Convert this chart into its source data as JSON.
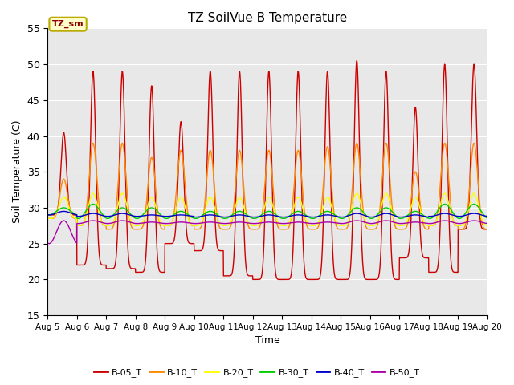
{
  "title": "TZ SoilVue B Temperature",
  "xlabel": "Time",
  "ylabel": "Soil Temperature (C)",
  "ylim": [
    15,
    55
  ],
  "x_tick_labels": [
    "Aug 5",
    "Aug 6",
    "Aug 7",
    "Aug 8",
    "Aug 9",
    "Aug 10",
    "Aug 11",
    "Aug 12",
    "Aug 13",
    "Aug 14",
    "Aug 15",
    "Aug 16",
    "Aug 17",
    "Aug 18",
    "Aug 19",
    "Aug 20"
  ],
  "legend_label": "TZ_sm",
  "yticks": [
    15,
    20,
    25,
    30,
    35,
    40,
    45,
    50,
    55
  ],
  "background_color": "#e8e8e8",
  "figure_color": "#ffffff",
  "series": [
    {
      "name": "B-05_T",
      "color": "#cc0000",
      "night_mins": [
        29.0,
        22.0,
        21.5,
        21.0,
        25.0,
        24.0,
        20.5,
        20.0,
        20.0,
        20.0,
        20.0,
        20.0,
        23.0,
        21.0,
        27.0
      ],
      "day_maxs": [
        40.5,
        49.0,
        49.0,
        47.0,
        42.0,
        49.0,
        49.0,
        49.0,
        49.0,
        49.0,
        50.5,
        49.0,
        44.0,
        50.0,
        50.0
      ],
      "sharpness": 6
    },
    {
      "name": "B-10_T",
      "color": "#ff8800",
      "night_mins": [
        28.5,
        27.5,
        27.0,
        27.0,
        27.5,
        27.0,
        27.0,
        27.0,
        27.0,
        27.0,
        27.0,
        27.0,
        27.0,
        27.5,
        27.0
      ],
      "day_maxs": [
        34.0,
        39.0,
        39.0,
        37.0,
        38.0,
        38.0,
        38.0,
        38.0,
        38.0,
        38.5,
        39.0,
        39.0,
        35.0,
        39.0,
        39.0
      ],
      "sharpness": 3
    },
    {
      "name": "B-20_T",
      "color": "#ffff00",
      "night_mins": [
        28.5,
        27.5,
        27.5,
        27.5,
        27.5,
        27.5,
        27.5,
        27.5,
        27.5,
        27.5,
        27.5,
        27.5,
        27.5,
        27.5,
        27.5
      ],
      "day_maxs": [
        31.5,
        32.0,
        32.0,
        31.5,
        31.5,
        31.5,
        31.5,
        31.5,
        31.5,
        31.5,
        32.0,
        32.0,
        31.5,
        32.0,
        32.0
      ],
      "sharpness": 2
    },
    {
      "name": "B-30_T",
      "color": "#00cc00",
      "night_mins": [
        29.0,
        28.5,
        28.5,
        28.5,
        28.5,
        28.5,
        28.5,
        28.5,
        28.5,
        28.5,
        28.5,
        28.5,
        28.5,
        28.5,
        28.5
      ],
      "day_maxs": [
        30.0,
        30.5,
        30.0,
        30.0,
        29.5,
        29.5,
        29.5,
        29.5,
        29.5,
        29.5,
        30.0,
        30.0,
        29.5,
        30.5,
        30.5
      ],
      "sharpness": 1
    },
    {
      "name": "B-40_T",
      "color": "#0000cc",
      "night_mins": [
        29.0,
        28.8,
        28.8,
        28.8,
        28.8,
        28.7,
        28.7,
        28.7,
        28.7,
        28.7,
        28.7,
        28.7,
        28.7,
        28.8,
        28.8
      ],
      "day_maxs": [
        29.5,
        29.2,
        29.2,
        29.0,
        29.0,
        29.0,
        29.0,
        29.0,
        29.0,
        29.0,
        29.2,
        29.2,
        29.0,
        29.2,
        29.2
      ],
      "sharpness": 1
    },
    {
      "name": "B-50_T",
      "color": "#aa00aa",
      "night_mins": [
        25.0,
        27.8,
        27.8,
        27.8,
        27.8,
        27.8,
        27.8,
        27.8,
        27.8,
        27.8,
        27.8,
        27.8,
        27.8,
        27.8,
        27.8
      ],
      "day_maxs": [
        28.2,
        28.2,
        28.2,
        28.0,
        28.0,
        28.0,
        28.0,
        28.0,
        28.0,
        28.0,
        28.2,
        28.2,
        28.0,
        28.2,
        28.2
      ],
      "sharpness": 1
    }
  ]
}
